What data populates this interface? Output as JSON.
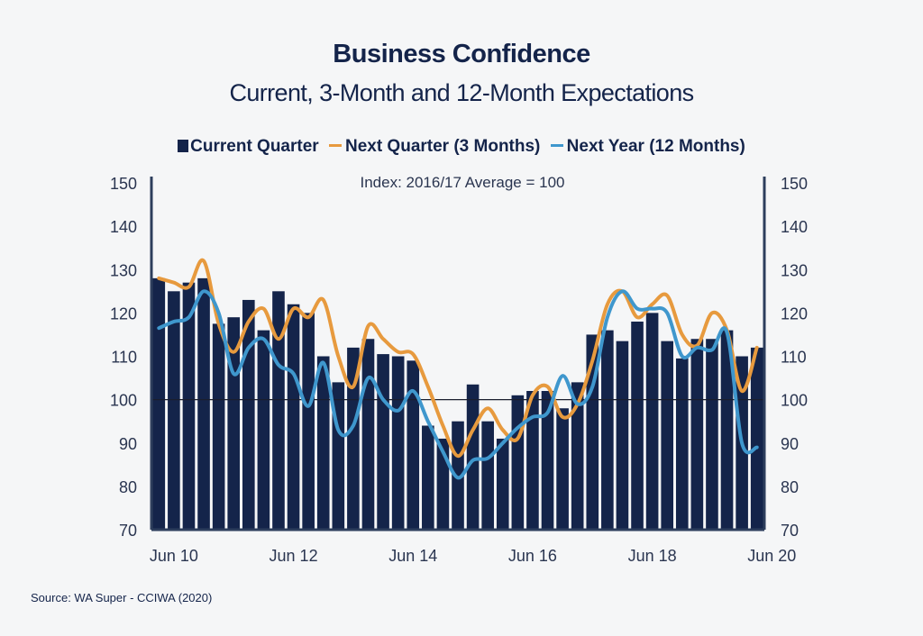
{
  "title": "Business Confidence",
  "subtitle": "Current, 3-Month and 12-Month Expectations",
  "source": "Source: WA Super - CCIWA (2020)",
  "colors": {
    "bars": "#14244a",
    "next_quarter": "#e79a3e",
    "next_year": "#3f97cd",
    "axis": "#2d3e5c",
    "background": "#f5f6f7"
  },
  "chart_data": {
    "type": "bar",
    "title": "Business Confidence",
    "subtitle": "Current, 3-Month and 12-Month Expectations",
    "annotation": "Index: 2016/17 Average = 100",
    "x_tick_labels": [
      "Jun 10",
      "Jun 12",
      "Jun 14",
      "Jun 16",
      "Jun 18",
      "Jun 20"
    ],
    "x_tick_positions": [
      1,
      9,
      17,
      25,
      33,
      41
    ],
    "ylim": [
      70,
      150
    ],
    "y_ticks": [
      70,
      80,
      90,
      100,
      110,
      120,
      130,
      140,
      150
    ],
    "reference_line": 100,
    "grid": false,
    "legend_position": "top",
    "series": [
      {
        "name": "Current Quarter",
        "type": "bar",
        "values": [
          128,
          125,
          127,
          128,
          117.5,
          119,
          123,
          116,
          125,
          122,
          120,
          110,
          104,
          112,
          114,
          110.5,
          110,
          109,
          94,
          91,
          95,
          103.5,
          95,
          91,
          101,
          102,
          102,
          98,
          104,
          115,
          116,
          113.5,
          118,
          120,
          113.5,
          109.5,
          114,
          114,
          116,
          110,
          112
        ]
      },
      {
        "name": "Next Quarter (3 Months)",
        "type": "line",
        "values": [
          128,
          127,
          126,
          132,
          117.5,
          111,
          118,
          121,
          114,
          121,
          119,
          123,
          110,
          103,
          117,
          114,
          111,
          110.5,
          103,
          94,
          87,
          93,
          98,
          93,
          91,
          101,
          103,
          96,
          99,
          109,
          122,
          125,
          119,
          122,
          124,
          115,
          112.5,
          120,
          116,
          102,
          112
        ]
      },
      {
        "name": "Next Year (12 Months)",
        "type": "line",
        "values": [
          116.5,
          118,
          119,
          125,
          120,
          106,
          112,
          114,
          108,
          106,
          98.5,
          108.5,
          93,
          94,
          105,
          100,
          97.5,
          102,
          95,
          88,
          82,
          86,
          86.5,
          90,
          93.5,
          96,
          97,
          105.5,
          99,
          103,
          119,
          125,
          121,
          121,
          120,
          110,
          112,
          111.5,
          115.5,
          90,
          89
        ]
      }
    ]
  }
}
